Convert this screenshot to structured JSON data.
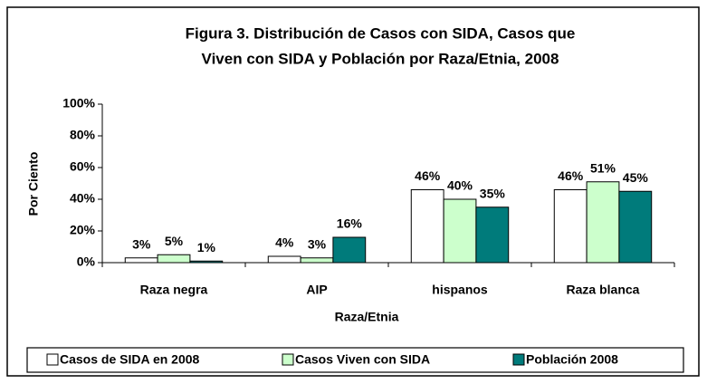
{
  "chart_data": {
    "type": "bar",
    "title": [
      "Figura 3. Distribución de Casos con SIDA, Casos que",
      "Viven con SIDA y Población por Raza/Etnia, 2008"
    ],
    "xlabel": "Raza/Etnia",
    "ylabel": "Por Ciento",
    "categories": [
      "Raza negra",
      "AIP",
      "hispanos",
      "Raza blanca"
    ],
    "series": [
      {
        "name": "Casos de SIDA en 2008",
        "color": "#ffffff",
        "values": [
          3,
          4,
          46,
          46
        ],
        "value_labels": [
          "3%",
          "4%",
          "46%",
          "46%"
        ]
      },
      {
        "name": "Casos Viven con SIDA",
        "color": "#ccffcc",
        "values": [
          5,
          3,
          40,
          51
        ],
        "value_labels": [
          "5%",
          "3%",
          "40%",
          "51%"
        ]
      },
      {
        "name": "Población 2008",
        "color": "#007b7b",
        "values": [
          1,
          16,
          35,
          45
        ],
        "value_labels": [
          "1%",
          "16%",
          "35%",
          "45%"
        ]
      }
    ],
    "ylim": [
      0,
      100
    ],
    "yticks": [
      {
        "value": 0,
        "label": "0%"
      },
      {
        "value": 20,
        "label": "20%"
      },
      {
        "value": 40,
        "label": "40%"
      },
      {
        "value": 60,
        "label": "60%"
      },
      {
        "value": 80,
        "label": "80%"
      },
      {
        "value": 100,
        "label": "100%"
      }
    ],
    "grid": false,
    "legend": "bottom"
  }
}
